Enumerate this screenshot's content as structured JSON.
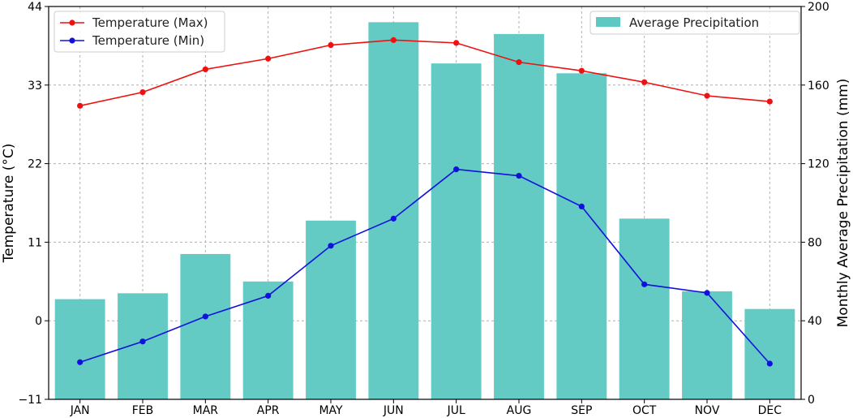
{
  "chart_data": {
    "type": "bar+line",
    "categories": [
      "JAN",
      "FEB",
      "MAR",
      "APR",
      "MAY",
      "JUN",
      "JUL",
      "AUG",
      "SEP",
      "OCT",
      "NOV",
      "DEC"
    ],
    "ylabel_left": "Temperature (°C)",
    "ylabel_right": "Monthly Average Precipitation (mm)",
    "ylim_left": [
      -11,
      44
    ],
    "ylim_right": [
      0,
      200
    ],
    "yticks_left": [
      "-11",
      "0",
      "11",
      "22",
      "33",
      "44"
    ],
    "yticks_right": [
      "0",
      "40",
      "80",
      "120",
      "160",
      "200"
    ],
    "grid": true,
    "bars": {
      "name": "Average Precipitation",
      "color": "#5ec9c2",
      "axis": "right",
      "values": [
        51,
        54,
        74,
        60,
        91,
        192,
        171,
        186,
        166,
        92,
        55,
        46
      ]
    },
    "series": [
      {
        "name": "Temperature (Max)",
        "color": "#ee1111",
        "axis": "left",
        "values": [
          30.1,
          32.0,
          35.2,
          36.7,
          38.6,
          39.3,
          38.9,
          36.2,
          35.0,
          33.4,
          31.5,
          30.7
        ]
      },
      {
        "name": "Temperature (Min)",
        "color": "#1111dd",
        "axis": "left",
        "values": [
          -5.8,
          -2.9,
          0.6,
          3.5,
          10.5,
          14.3,
          21.2,
          20.3,
          16.0,
          5.1,
          3.9,
          -6.0
        ]
      }
    ],
    "legend_left_position": "top-left",
    "legend_right_position": "top-right"
  }
}
